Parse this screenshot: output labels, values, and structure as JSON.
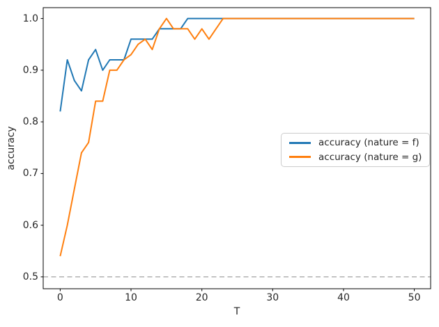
{
  "figure": {
    "background": "#ffffff"
  },
  "chart_data": {
    "type": "line",
    "xlabel": "T",
    "ylabel": "accuracy",
    "xlim": [
      -2.4,
      52.3
    ],
    "ylim": [
      0.477,
      1.021
    ],
    "x_ticks": [
      0,
      10,
      20,
      30,
      40,
      50
    ],
    "y_ticks": [
      0.5,
      0.6,
      0.7,
      0.8,
      0.9,
      1.0
    ],
    "grid": false,
    "legend_position": "center right",
    "tick_color": "#262626",
    "spine_color": "#000000",
    "x": [
      0,
      1,
      2,
      3,
      4,
      5,
      6,
      7,
      8,
      9,
      10,
      11,
      12,
      13,
      14,
      15,
      16,
      17,
      18,
      19,
      20,
      21,
      22,
      23,
      24,
      25,
      26,
      27,
      28,
      29,
      30,
      31,
      32,
      33,
      34,
      35,
      36,
      37,
      38,
      39,
      40,
      41,
      42,
      43,
      44,
      45,
      46,
      47,
      48,
      49,
      50
    ],
    "series": [
      {
        "name": "accuracy (nature = f)",
        "color": "#1f77b4",
        "values": [
          0.82,
          0.92,
          0.88,
          0.86,
          0.92,
          0.94,
          0.9,
          0.92,
          0.92,
          0.92,
          0.96,
          0.96,
          0.96,
          0.96,
          0.98,
          0.98,
          0.98,
          0.98,
          1.0,
          1.0,
          1.0,
          1.0,
          1.0,
          1.0,
          1.0,
          1.0,
          1.0,
          1.0,
          1.0,
          1.0,
          1.0,
          1.0,
          1.0,
          1.0,
          1.0,
          1.0,
          1.0,
          1.0,
          1.0,
          1.0,
          1.0,
          1.0,
          1.0,
          1.0,
          1.0,
          1.0,
          1.0,
          1.0,
          1.0,
          1.0,
          1.0
        ]
      },
      {
        "name": "accuracy (nature = g)",
        "color": "#ff7f0e",
        "values": [
          0.54,
          0.6,
          0.67,
          0.74,
          0.76,
          0.84,
          0.84,
          0.9,
          0.9,
          0.92,
          0.93,
          0.95,
          0.96,
          0.94,
          0.98,
          1.0,
          0.98,
          0.98,
          0.98,
          0.96,
          0.98,
          0.96,
          0.98,
          1.0,
          1.0,
          1.0,
          1.0,
          1.0,
          1.0,
          1.0,
          1.0,
          1.0,
          1.0,
          1.0,
          1.0,
          1.0,
          1.0,
          1.0,
          1.0,
          1.0,
          1.0,
          1.0,
          1.0,
          1.0,
          1.0,
          1.0,
          1.0,
          1.0,
          1.0,
          1.0,
          1.0
        ]
      }
    ],
    "reference_line": {
      "y": 0.5,
      "style": "dashed",
      "color": "#b0b0b0"
    }
  }
}
